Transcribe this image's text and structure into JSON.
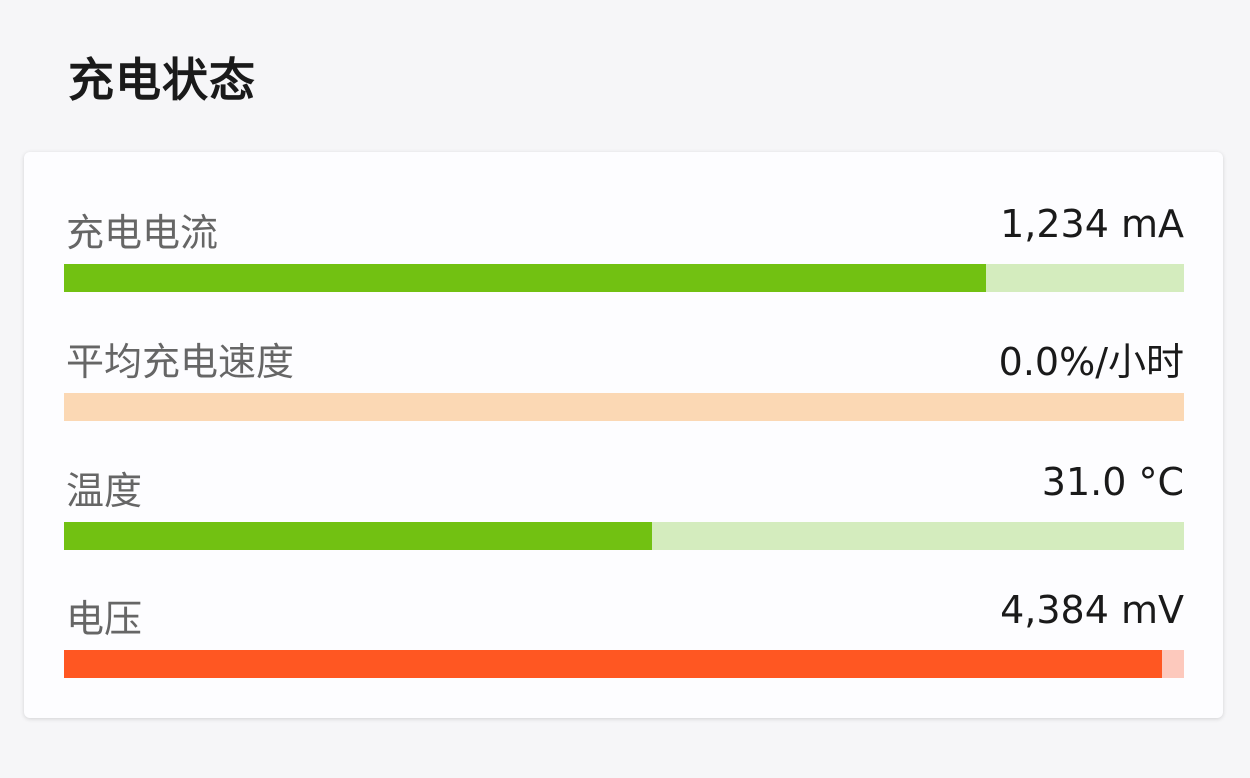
{
  "title": "充电状态",
  "rows": [
    {
      "label": "充电电流",
      "value": "1,234 mA",
      "fill_percent": 82.3,
      "fill_color": "#72c112",
      "track_color": "#d4ecbe"
    },
    {
      "label": "平均充电速度",
      "value": "0.0%/小时",
      "fill_percent": 0,
      "fill_color": "#ff9e4a",
      "track_color": "#fbd8b4"
    },
    {
      "label": "温度",
      "value": "31.0 °C",
      "fill_percent": 52.5,
      "fill_color": "#72c112",
      "track_color": "#d4ecbe"
    },
    {
      "label": "电压",
      "value": "4,384 mV",
      "fill_percent": 98.0,
      "fill_color": "#ff5722",
      "track_color": "#fdc9bd"
    }
  ]
}
